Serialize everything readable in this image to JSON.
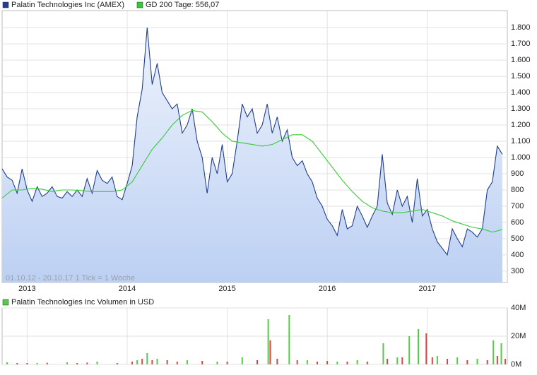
{
  "chart_data": [
    {
      "type": "line",
      "annotation": "01.10.12 - 20.10.17   1 Tick = 1 Woche",
      "xlim": [
        2012.75,
        2017.8
      ],
      "xticks": [
        2013,
        2014,
        2015,
        2016,
        2017
      ],
      "ylim": [
        230,
        1905
      ],
      "yticks": [
        {
          "value": 300,
          "label": "300"
        },
        {
          "value": 400,
          "label": "400"
        },
        {
          "value": 500,
          "label": "500"
        },
        {
          "value": 600,
          "label": "600"
        },
        {
          "value": 700,
          "label": "700"
        },
        {
          "value": 800,
          "label": "800"
        },
        {
          "value": 900,
          "label": "900"
        },
        {
          "value": 1000,
          "label": "1.000"
        },
        {
          "value": 1100,
          "label": "1.100"
        },
        {
          "value": 1200,
          "label": "1.200"
        },
        {
          "value": 1300,
          "label": "1.300"
        },
        {
          "value": 1400,
          "label": "1.400"
        },
        {
          "value": 1500,
          "label": "1.500"
        },
        {
          "value": 1600,
          "label": "1.600"
        },
        {
          "value": 1700,
          "label": "1.700"
        },
        {
          "value": 1800,
          "label": "1.800"
        }
      ],
      "grid": true,
      "series": [
        {
          "name": "Palatin Technologies Inc (AMEX)",
          "color": "#1f3f8f",
          "area": true,
          "x": [
            2012.75,
            2012.8,
            2012.85,
            2012.9,
            2012.95,
            2013.0,
            2013.05,
            2013.1,
            2013.15,
            2013.2,
            2013.25,
            2013.3,
            2013.35,
            2013.4,
            2013.45,
            2013.5,
            2013.55,
            2013.6,
            2013.65,
            2013.7,
            2013.75,
            2013.8,
            2013.85,
            2013.9,
            2013.95,
            2014.0,
            2014.05,
            2014.1,
            2014.15,
            2014.2,
            2014.25,
            2014.3,
            2014.35,
            2014.4,
            2014.45,
            2014.5,
            2014.55,
            2014.6,
            2014.65,
            2014.7,
            2014.75,
            2014.8,
            2014.85,
            2014.9,
            2014.95,
            2015.0,
            2015.05,
            2015.1,
            2015.15,
            2015.2,
            2015.25,
            2015.3,
            2015.35,
            2015.4,
            2015.45,
            2015.5,
            2015.55,
            2015.6,
            2015.65,
            2015.7,
            2015.75,
            2015.8,
            2015.85,
            2015.9,
            2015.95,
            2016.0,
            2016.05,
            2016.1,
            2016.15,
            2016.2,
            2016.25,
            2016.3,
            2016.35,
            2016.4,
            2016.45,
            2016.5,
            2016.55,
            2016.6,
            2016.65,
            2016.7,
            2016.75,
            2016.8,
            2016.85,
            2016.9,
            2016.95,
            2017.0,
            2017.05,
            2017.1,
            2017.15,
            2017.2,
            2017.25,
            2017.3,
            2017.35,
            2017.4,
            2017.45,
            2017.5,
            2017.55,
            2017.6,
            2017.65,
            2017.7,
            2017.75
          ],
          "values": [
            930,
            880,
            860,
            780,
            930,
            800,
            730,
            820,
            760,
            780,
            820,
            760,
            750,
            790,
            760,
            800,
            760,
            870,
            780,
            920,
            860,
            840,
            880,
            760,
            740,
            840,
            950,
            1250,
            1420,
            1800,
            1450,
            1580,
            1400,
            1350,
            1300,
            1330,
            1150,
            1200,
            1300,
            1100,
            1000,
            780,
            1000,
            900,
            1080,
            850,
            900,
            1100,
            1330,
            1250,
            1300,
            1150,
            1200,
            1330,
            1150,
            1250,
            1100,
            1170,
            1000,
            950,
            980,
            900,
            850,
            750,
            700,
            620,
            580,
            520,
            680,
            560,
            580,
            700,
            640,
            570,
            640,
            700,
            1020,
            720,
            650,
            800,
            700,
            760,
            600,
            870,
            640,
            680,
            560,
            480,
            440,
            400,
            560,
            500,
            450,
            560,
            540,
            510,
            560,
            800,
            850,
            1070,
            1020
          ]
        },
        {
          "name": "GD 200 Tage: 556,07",
          "color": "#33cc33",
          "x": [
            2012.75,
            2012.85,
            2012.95,
            2013.05,
            2013.15,
            2013.25,
            2013.35,
            2013.45,
            2013.55,
            2013.65,
            2013.75,
            2013.85,
            2013.95,
            2014.05,
            2014.15,
            2014.25,
            2014.35,
            2014.45,
            2014.55,
            2014.65,
            2014.75,
            2014.85,
            2014.95,
            2015.05,
            2015.15,
            2015.25,
            2015.35,
            2015.45,
            2015.55,
            2015.65,
            2015.75,
            2015.85,
            2015.95,
            2016.05,
            2016.15,
            2016.25,
            2016.35,
            2016.45,
            2016.55,
            2016.65,
            2016.75,
            2016.85,
            2016.95,
            2017.05,
            2017.15,
            2017.25,
            2017.35,
            2017.45,
            2017.55,
            2017.65,
            2017.75
          ],
          "values": [
            750,
            800,
            800,
            810,
            805,
            790,
            800,
            800,
            795,
            790,
            790,
            790,
            800,
            850,
            950,
            1050,
            1120,
            1200,
            1260,
            1290,
            1280,
            1220,
            1150,
            1100,
            1090,
            1080,
            1070,
            1080,
            1110,
            1140,
            1140,
            1100,
            1020,
            940,
            860,
            790,
            730,
            690,
            670,
            660,
            660,
            670,
            680,
            660,
            640,
            610,
            590,
            570,
            560,
            540,
            556
          ]
        }
      ]
    },
    {
      "type": "bar",
      "title": "Palatin Technologies Inc Volumen in USD",
      "xlim": [
        2012.75,
        2017.8
      ],
      "xticks": [
        2013,
        2014,
        2015,
        2016,
        2017
      ],
      "ylim": [
        0,
        40000000
      ],
      "yticks": [
        {
          "value": 0,
          "label": "0M"
        },
        {
          "value": 20000000,
          "label": "20M"
        },
        {
          "value": 40000000,
          "label": "40M"
        }
      ],
      "grid": true,
      "series": [
        {
          "color": "#55cc44",
          "x": [
            2012.8,
            2013.1,
            2013.4,
            2013.7,
            2014.1,
            2014.2,
            2014.3,
            2014.6,
            2014.9,
            2015.15,
            2015.41,
            2015.62,
            2015.8,
            2016.1,
            2016.3,
            2016.56,
            2016.7,
            2016.82,
            2016.91,
            2017.1,
            2017.3,
            2017.5,
            2017.66,
            2017.74
          ],
          "values": [
            1500000,
            1000000,
            1500000,
            2000000,
            3000000,
            8000000,
            4000000,
            3000000,
            2000000,
            5000000,
            32000000,
            35000000,
            3000000,
            2000000,
            3000000,
            15000000,
            5000000,
            20000000,
            25000000,
            6000000,
            5000000,
            4000000,
            17000000,
            15000000
          ]
        },
        {
          "color": "#dd4444",
          "x": [
            2012.9,
            2013.0,
            2013.2,
            2013.5,
            2013.6,
            2013.9,
            2014.05,
            2014.15,
            2014.25,
            2014.4,
            2014.5,
            2014.75,
            2015.0,
            2015.3,
            2015.43,
            2015.5,
            2015.7,
            2015.9,
            2016.0,
            2016.2,
            2016.4,
            2016.6,
            2016.75,
            2016.99,
            2017.05,
            2017.2,
            2017.4,
            2017.6,
            2017.7,
            2017.78
          ],
          "values": [
            1000000,
            1000000,
            1200000,
            1000000,
            1300000,
            1000000,
            2000000,
            4000000,
            3000000,
            3000000,
            2000000,
            2500000,
            2000000,
            3000000,
            17000000,
            4000000,
            3000000,
            2000000,
            2500000,
            2000000,
            2000000,
            4000000,
            5000000,
            22000000,
            5000000,
            4000000,
            3000000,
            3000000,
            6000000,
            4000000
          ]
        }
      ]
    }
  ]
}
